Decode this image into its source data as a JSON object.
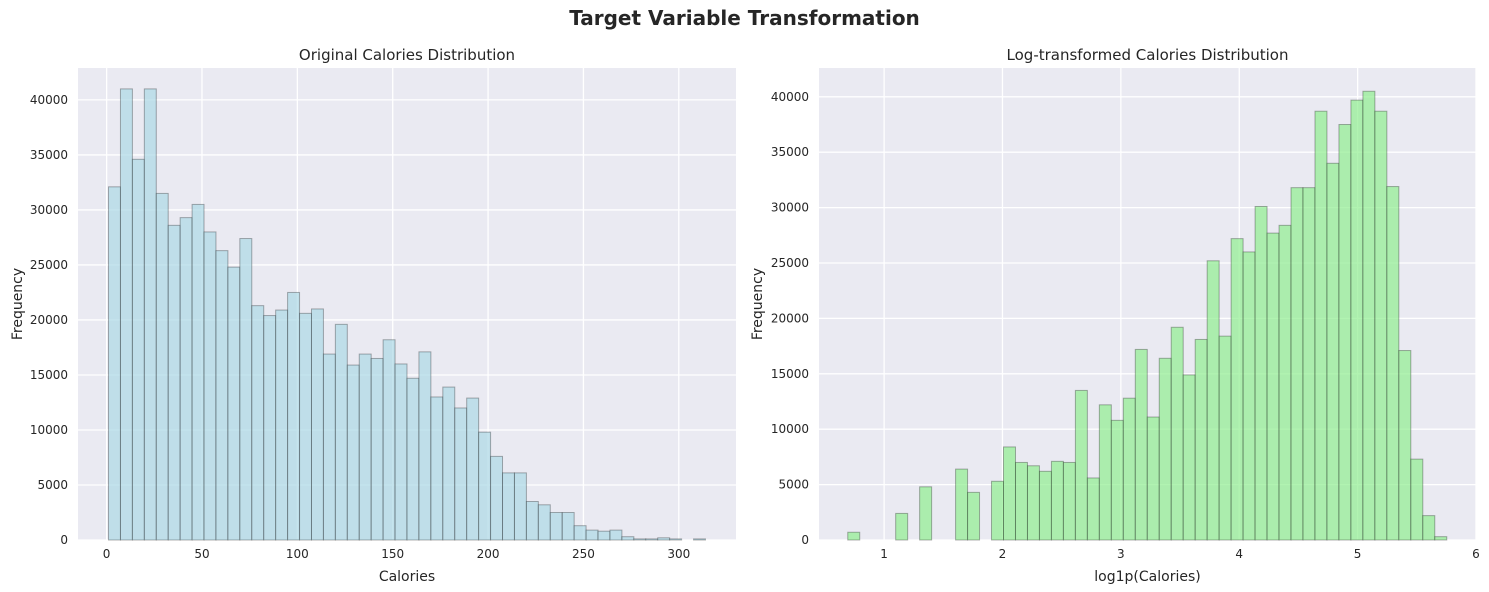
{
  "figure": {
    "suptitle": "Target Variable Transformation"
  },
  "chart_data": [
    {
      "type": "bar",
      "title": "Original Calories Distribution",
      "xlabel": "Calories",
      "ylabel": "Frequency",
      "color": "#add8e6",
      "edge_color": "#000000",
      "background": "#eaeaf2",
      "grid": true,
      "xlim": [
        -15,
        330
      ],
      "ylim": [
        0,
        42900
      ],
      "xticks": [
        0,
        50,
        100,
        150,
        200,
        250,
        300
      ],
      "yticks": [
        0,
        5000,
        10000,
        15000,
        20000,
        25000,
        30000,
        35000,
        40000
      ],
      "bin_start": 1,
      "bin_width": 6.26,
      "values": [
        32100,
        41000,
        34600,
        41000,
        31500,
        28600,
        29300,
        30500,
        28000,
        26300,
        24800,
        27400,
        21300,
        20400,
        20900,
        22500,
        20600,
        21000,
        16900,
        19600,
        15900,
        16900,
        16500,
        18200,
        16000,
        14700,
        17100,
        13000,
        13900,
        12000,
        12900,
        9800,
        7600,
        6100,
        6100,
        3500,
        3200,
        2500,
        2500,
        1300,
        900,
        800,
        900,
        300,
        100,
        100,
        200,
        100,
        0,
        100
      ]
    },
    {
      "type": "bar",
      "title": "Log-transformed Calories Distribution",
      "xlabel": "log1p(Calories)",
      "ylabel": "Frequency",
      "color": "#90ee90",
      "edge_color": "#000000",
      "background": "#eaeaf2",
      "grid": true,
      "xlim": [
        0.45,
        6.0
      ],
      "ylim": [
        0,
        42600
      ],
      "xticks": [
        1,
        2,
        3,
        4,
        5,
        6
      ],
      "yticks": [
        0,
        5000,
        10000,
        15000,
        20000,
        25000,
        30000,
        35000,
        40000
      ],
      "bin_start": 0.693,
      "bin_width": 0.1012,
      "values": [
        700,
        0,
        0,
        0,
        2400,
        0,
        4800,
        0,
        0,
        6400,
        4300,
        0,
        5300,
        8400,
        7000,
        6700,
        6200,
        7100,
        7000,
        13500,
        5600,
        12200,
        10800,
        12800,
        17200,
        11100,
        16400,
        19200,
        14900,
        18100,
        25200,
        18400,
        27200,
        26000,
        30100,
        27700,
        28400,
        31800,
        31800,
        38700,
        34000,
        37500,
        39700,
        40500,
        38700,
        31900,
        17100,
        7300,
        2200,
        300
      ]
    }
  ]
}
